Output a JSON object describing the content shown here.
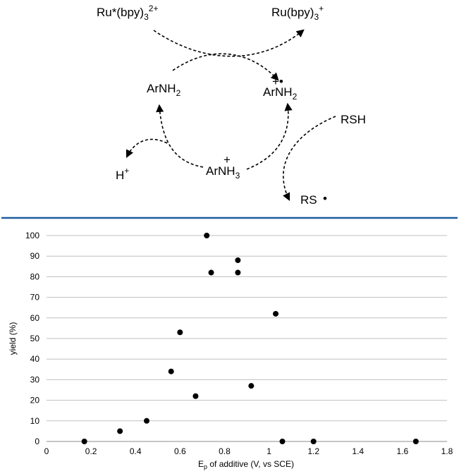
{
  "scheme": {
    "ru_excited": "Ru*(bpy)",
    "ru_excited_sub": "3",
    "ru_excited_sup": "2+",
    "ru_reduced": "Ru(bpy)",
    "ru_reduced_sub": "3",
    "ru_reduced_sup": "+",
    "arnh2": "ArNH",
    "arnh2_sub": "2",
    "radical_cation": "ArNH",
    "radical_cation_sub": "2",
    "radical_cation_mark": "+•",
    "arnh3": "ArNH",
    "arnh3_sub": "3",
    "arnh3_mark": "+",
    "proton": "H",
    "proton_sup": "+",
    "thiol": "RSH",
    "thiyl": "RS",
    "thiyl_dot": "•"
  },
  "divider_color": "#1f5f9f",
  "chart_data": {
    "type": "scatter",
    "xlabel": "E",
    "xlabel_sub": "p",
    "xlabel_rest": " of additive (V, vs SCE)",
    "ylabel": "yield (%)",
    "xlim": [
      0,
      1.8
    ],
    "ylim": [
      0,
      100
    ],
    "xticks": [
      0,
      0.2,
      0.4,
      0.6,
      0.8,
      1,
      1.2,
      1.4,
      1.6,
      1.8
    ],
    "xtick_labels": [
      "0",
      "0.2",
      "0.4",
      "0.6",
      "0.8",
      "1",
      "1.2",
      "1.4",
      "1.6",
      "1.8"
    ],
    "yticks": [
      0,
      10,
      20,
      30,
      40,
      50,
      60,
      70,
      80,
      90,
      100
    ],
    "ytick_labels": [
      "0",
      "10",
      "20",
      "30",
      "40",
      "50",
      "60",
      "70",
      "80",
      "90",
      "100"
    ],
    "grid": "horizontal",
    "marker_color": "#000000",
    "points": [
      {
        "x": 0.17,
        "y": 0
      },
      {
        "x": 0.33,
        "y": 5
      },
      {
        "x": 0.45,
        "y": 10
      },
      {
        "x": 0.56,
        "y": 34
      },
      {
        "x": 0.6,
        "y": 53
      },
      {
        "x": 0.67,
        "y": 22
      },
      {
        "x": 0.72,
        "y": 100
      },
      {
        "x": 0.74,
        "y": 82
      },
      {
        "x": 0.86,
        "y": 88
      },
      {
        "x": 0.86,
        "y": 82
      },
      {
        "x": 0.92,
        "y": 27
      },
      {
        "x": 1.03,
        "y": 62
      },
      {
        "x": 1.06,
        "y": 0
      },
      {
        "x": 1.2,
        "y": 0
      },
      {
        "x": 1.66,
        "y": 0
      }
    ]
  }
}
